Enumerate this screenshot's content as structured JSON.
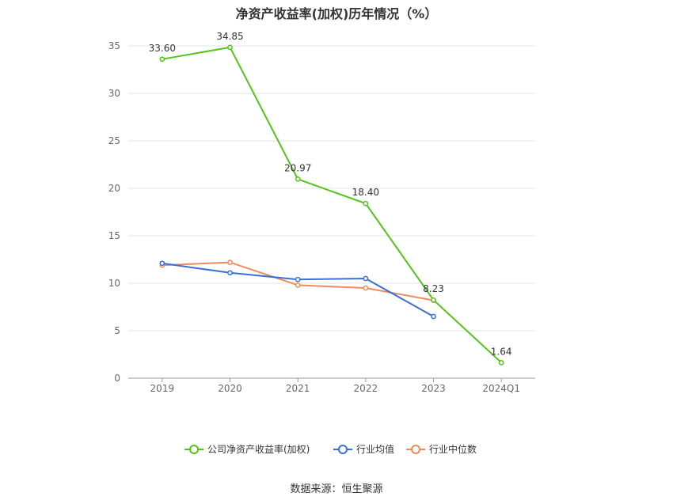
{
  "chart_data": {
    "type": "line",
    "title": "净资产收益率(加权)历年情况（%）",
    "categories": [
      "2019",
      "2020",
      "2021",
      "2022",
      "2023",
      "2024Q1"
    ],
    "ylim": [
      0,
      35
    ],
    "yticks": [
      0,
      5,
      10,
      15,
      20,
      25,
      30,
      35
    ],
    "grid": true,
    "legend_position": "bottom",
    "series": [
      {
        "name": "公司净资产收益率(加权)",
        "color": "#52c41a",
        "values": [
          33.6,
          34.85,
          20.97,
          18.4,
          8.23,
          1.64
        ],
        "labels": [
          "33.60",
          "34.85",
          "20.97",
          "18.40",
          "8.23",
          "1.64"
        ]
      },
      {
        "name": "行业均值",
        "color": "#3a6fd8",
        "values": [
          12.1,
          11.1,
          10.4,
          10.5,
          6.5,
          null
        ]
      },
      {
        "name": "行业中位数",
        "color": "#f08a5d",
        "values": [
          11.9,
          12.2,
          9.8,
          9.5,
          8.2,
          null
        ]
      }
    ]
  },
  "source_text": "数据来源：恒生聚源"
}
